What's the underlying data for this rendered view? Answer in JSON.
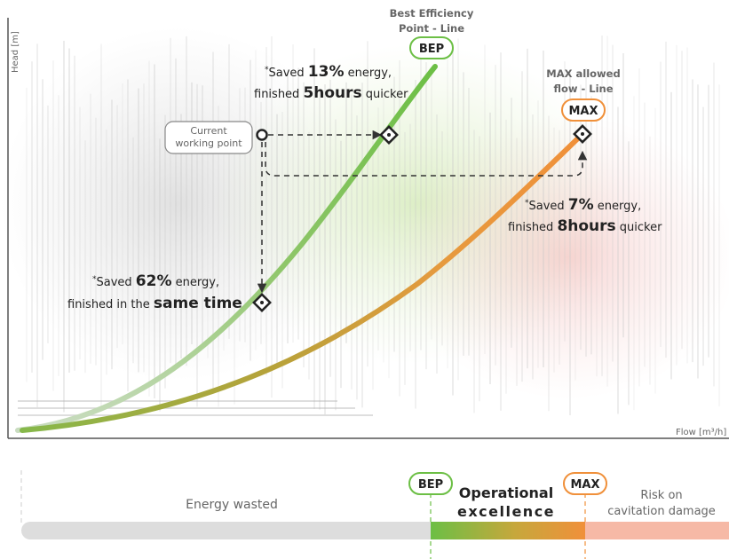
{
  "axes": {
    "y_label": "Head [m]",
    "x_label": "Flow [m³/h]"
  },
  "bep_line": {
    "label_line1": "Best Efficiency",
    "label_line2": "Point - Line",
    "badge": "BEP",
    "color": "#6cbf45"
  },
  "max_line": {
    "label_line1": "MAX allowed",
    "label_line2": "flow - Line",
    "badge": "MAX",
    "color": "#f0903a"
  },
  "current_point": {
    "label_line1": "Current",
    "label_line2": "working point"
  },
  "annotations": {
    "bep_top": {
      "asterisk": "*",
      "line1_pre": "Saved ",
      "line1_bold": "13%",
      "line1_post": " energy,",
      "line2_pre": "finished ",
      "line2_bold": "5hours",
      "line2_post": " quicker"
    },
    "max": {
      "asterisk": "*",
      "line1_pre": "Saved ",
      "line1_bold": "7%",
      "line1_post": " energy,",
      "line2_pre": "finished ",
      "line2_bold": "8hours",
      "line2_post": " quicker"
    },
    "low": {
      "asterisk": "*",
      "line1_pre": "Saved ",
      "line1_bold": "62%",
      "line1_post": " energy,",
      "line2_pre": "finished in the ",
      "line2_bold": "same time",
      "line2_post": ""
    }
  },
  "zones": {
    "energy_wasted": "Energy wasted",
    "operational_line1": "Operational",
    "operational_line2": "excellence",
    "risk_line1": "Risk on",
    "risk_line2": "cavitation damage",
    "bep_badge": "BEP",
    "max_badge": "MAX"
  },
  "colors": {
    "green": "#6cbf45",
    "orange": "#f0903a",
    "grey_zone": "#dddddd",
    "red_zone": "#f6b9a6",
    "axis": "#555555"
  }
}
